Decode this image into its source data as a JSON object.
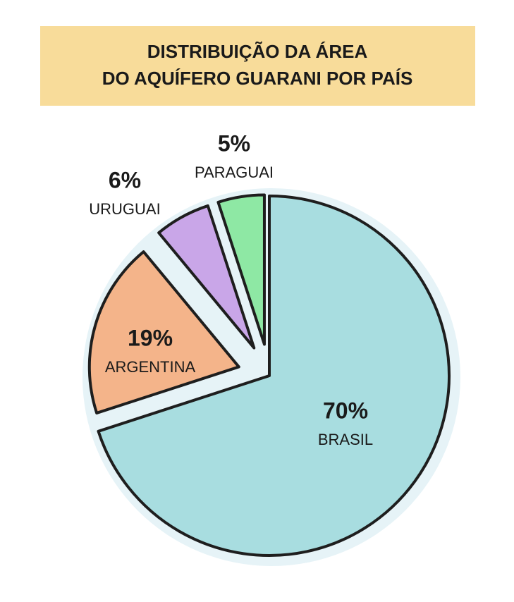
{
  "chart_data": {
    "type": "pie",
    "title": [
      "DISTRIBUIÇÃO DA ÁREA",
      "DO AQUÍFERO GUARANI POR PAÍS"
    ],
    "categories": [
      "BRASIL",
      "ARGENTINA",
      "URUGUAI",
      "PARAGUAI"
    ],
    "values": [
      70,
      19,
      6,
      5
    ],
    "value_labels": [
      "70%",
      "19%",
      "6%",
      "5%"
    ],
    "colors": [
      "#a8dde0",
      "#f4b48a",
      "#c9a6e8",
      "#8ee8a4"
    ]
  }
}
